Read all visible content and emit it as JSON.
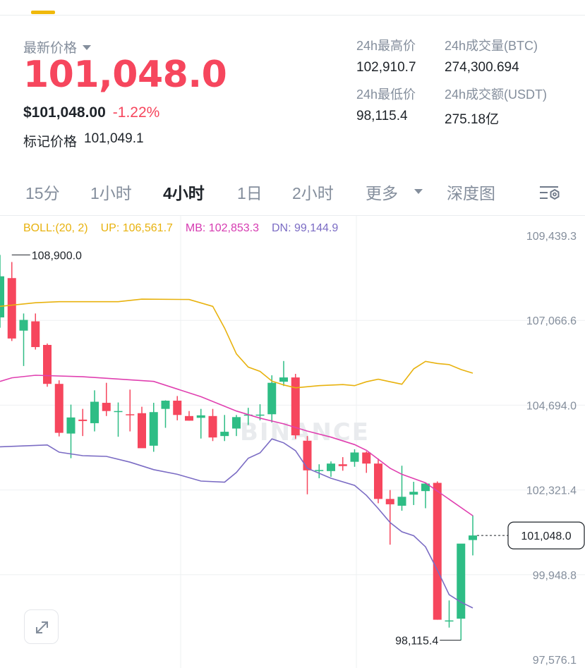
{
  "ticker": {
    "price_label": "最新价格",
    "last_price": "101,048.0",
    "usd_price": "$101,048.00",
    "change_pct": "-1.22%",
    "mark_label": "标记价格",
    "mark_price": "101,049.1"
  },
  "stats": {
    "high_label": "24h最高价",
    "high_value": "102,910.7",
    "low_label": "24h最低价",
    "low_value": "98,115.4",
    "vol_btc_label": "24h成交量(BTC)",
    "vol_btc_value": "274,300.694",
    "vol_usdt_label": "24h成交额(USDT)",
    "vol_usdt_value": "275.18亿"
  },
  "tabs": {
    "t15m": "15分",
    "t1h": "1小时",
    "t4h": "4小时",
    "t1d": "1日",
    "t2h": "2小时",
    "more": "更多",
    "depth": "深度图"
  },
  "indicator": {
    "title": "BOLL:(20, 2)",
    "up": "UP: 106,561.7",
    "mb": "MB: 102,853.3",
    "dn": "DN: 99,144.9"
  },
  "colors": {
    "up": "#2ebd85",
    "down": "#f6465d",
    "boll_up": "#e8b20e",
    "boll_mb": "#e040b0",
    "boll_dn": "#7b6cc4",
    "accent": "#f0b90b"
  },
  "icons": {
    "expand": "expand-icon",
    "settings": "chart-settings-icon",
    "caret": "caret-down-icon"
  },
  "chart_data": {
    "type": "candlestick",
    "watermark": "BINANCE",
    "ylim": [
      97576.1,
      109439.3
    ],
    "y_ticks": [
      {
        "value": 109439.3,
        "label": "109,439.3"
      },
      {
        "value": 107066.6,
        "label": "107,066.6"
      },
      {
        "value": 104694.0,
        "label": "104,694.0"
      },
      {
        "value": 102321.4,
        "label": "102,321.4"
      },
      {
        "value": 99948.8,
        "label": "99,948.8"
      },
      {
        "value": 97576.1,
        "label": "97,576.1"
      }
    ],
    "high_marker": {
      "value": 108900.0,
      "label": "108,900.0"
    },
    "low_marker": {
      "value": 98115.4,
      "label": "98,115.4"
    },
    "current_price": {
      "value": 101048.0,
      "label": "101,048.0"
    },
    "candles": [
      {
        "o": 107150,
        "h": 108900,
        "l": 106860,
        "c": 108300
      },
      {
        "o": 108250,
        "h": 108700,
        "l": 106490,
        "c": 106560
      },
      {
        "o": 106780,
        "h": 107260,
        "l": 105790,
        "c": 107080
      },
      {
        "o": 107040,
        "h": 107260,
        "l": 106250,
        "c": 106320
      },
      {
        "o": 106380,
        "h": 106420,
        "l": 105210,
        "c": 105290
      },
      {
        "o": 105290,
        "h": 105390,
        "l": 103820,
        "c": 103920
      },
      {
        "o": 103900,
        "h": 104710,
        "l": 103210,
        "c": 104350
      },
      {
        "o": 104290,
        "h": 104590,
        "l": 103830,
        "c": 104250
      },
      {
        "o": 104190,
        "h": 105110,
        "l": 103960,
        "c": 104790
      },
      {
        "o": 104760,
        "h": 105320,
        "l": 104390,
        "c": 104530
      },
      {
        "o": 104530,
        "h": 104770,
        "l": 103810,
        "c": 104530
      },
      {
        "o": 104440,
        "h": 105130,
        "l": 103960,
        "c": 104430
      },
      {
        "o": 104470,
        "h": 104650,
        "l": 103510,
        "c": 103490
      },
      {
        "o": 103560,
        "h": 104760,
        "l": 103390,
        "c": 104500
      },
      {
        "o": 104590,
        "h": 104830,
        "l": 104060,
        "c": 104820
      },
      {
        "o": 104820,
        "h": 104950,
        "l": 104270,
        "c": 104420
      },
      {
        "o": 104390,
        "h": 104530,
        "l": 104260,
        "c": 104260
      },
      {
        "o": 104340,
        "h": 104590,
        "l": 103760,
        "c": 104410
      },
      {
        "o": 104390,
        "h": 104590,
        "l": 103690,
        "c": 103790
      },
      {
        "o": 103830,
        "h": 104420,
        "l": 103690,
        "c": 103950
      },
      {
        "o": 104040,
        "h": 104420,
        "l": 103830,
        "c": 104360
      },
      {
        "o": 104410,
        "h": 104620,
        "l": 104140,
        "c": 104430
      },
      {
        "o": 104430,
        "h": 104720,
        "l": 104270,
        "c": 104430
      },
      {
        "o": 104440,
        "h": 105530,
        "l": 104210,
        "c": 105320
      },
      {
        "o": 105350,
        "h": 105930,
        "l": 105230,
        "c": 105470
      },
      {
        "o": 105470,
        "h": 105570,
        "l": 103750,
        "c": 103850
      },
      {
        "o": 103700,
        "h": 103830,
        "l": 102200,
        "c": 102870
      },
      {
        "o": 102870,
        "h": 103040,
        "l": 102650,
        "c": 102880
      },
      {
        "o": 102850,
        "h": 103120,
        "l": 102690,
        "c": 103060
      },
      {
        "o": 103040,
        "h": 103240,
        "l": 102860,
        "c": 102990
      },
      {
        "o": 103110,
        "h": 103460,
        "l": 102970,
        "c": 103370
      },
      {
        "o": 103370,
        "h": 103400,
        "l": 102800,
        "c": 103060
      },
      {
        "o": 103060,
        "h": 103200,
        "l": 101950,
        "c": 102070
      },
      {
        "o": 102070,
        "h": 102320,
        "l": 100790,
        "c": 101920
      },
      {
        "o": 101880,
        "h": 103000,
        "l": 101740,
        "c": 102130
      },
      {
        "o": 102190,
        "h": 102550,
        "l": 101900,
        "c": 102270
      },
      {
        "o": 102290,
        "h": 102520,
        "l": 101810,
        "c": 102500
      },
      {
        "o": 102520,
        "h": 102560,
        "l": 98690,
        "c": 98690
      },
      {
        "o": 98650,
        "h": 99230,
        "l": 98470,
        "c": 98670
      },
      {
        "o": 98720,
        "h": 100800,
        "l": 98115.4,
        "c": 100820
      },
      {
        "o": 100920,
        "h": 101610,
        "l": 100490,
        "c": 101048
      }
    ],
    "boll_up": [
      {
        "i": 0,
        "v": 107460
      },
      {
        "i": 3,
        "v": 107560
      },
      {
        "i": 5,
        "v": 107590
      },
      {
        "i": 10,
        "v": 107590
      },
      {
        "i": 12,
        "v": 107660
      },
      {
        "i": 16,
        "v": 107650
      },
      {
        "i": 18,
        "v": 107460
      },
      {
        "i": 19,
        "v": 106850
      },
      {
        "i": 20,
        "v": 106130
      },
      {
        "i": 21,
        "v": 105760
      },
      {
        "i": 22,
        "v": 105640
      },
      {
        "i": 23,
        "v": 105370
      },
      {
        "i": 24,
        "v": 105260
      },
      {
        "i": 25,
        "v": 105180
      },
      {
        "i": 27,
        "v": 105240
      },
      {
        "i": 29,
        "v": 105270
      },
      {
        "i": 30,
        "v": 105240
      },
      {
        "i": 31,
        "v": 105350
      },
      {
        "i": 32,
        "v": 105420
      },
      {
        "i": 33,
        "v": 105350
      },
      {
        "i": 34,
        "v": 105280
      },
      {
        "i": 35,
        "v": 105710
      },
      {
        "i": 36,
        "v": 105920
      },
      {
        "i": 37,
        "v": 105860
      },
      {
        "i": 38,
        "v": 105830
      },
      {
        "i": 39,
        "v": 105690
      },
      {
        "i": 40,
        "v": 105590
      }
    ],
    "boll_mb": [
      {
        "i": 0,
        "v": 105360
      },
      {
        "i": 1,
        "v": 105460
      },
      {
        "i": 3,
        "v": 105530
      },
      {
        "i": 7,
        "v": 105490
      },
      {
        "i": 13,
        "v": 105360
      },
      {
        "i": 17,
        "v": 104930
      },
      {
        "i": 20,
        "v": 104530
      },
      {
        "i": 22,
        "v": 104330
      },
      {
        "i": 24,
        "v": 104170
      },
      {
        "i": 26,
        "v": 103970
      },
      {
        "i": 28,
        "v": 103800
      },
      {
        "i": 30,
        "v": 103590
      },
      {
        "i": 31,
        "v": 103430
      },
      {
        "i": 33,
        "v": 102930
      },
      {
        "i": 34,
        "v": 102760
      },
      {
        "i": 36,
        "v": 102520
      },
      {
        "i": 38,
        "v": 102060
      },
      {
        "i": 40,
        "v": 101600
      }
    ],
    "boll_dn": [
      {
        "i": 0,
        "v": 103530
      },
      {
        "i": 4,
        "v": 103580
      },
      {
        "i": 5,
        "v": 103380
      },
      {
        "i": 7,
        "v": 103280
      },
      {
        "i": 9,
        "v": 103260
      },
      {
        "i": 11,
        "v": 103100
      },
      {
        "i": 13,
        "v": 102890
      },
      {
        "i": 15,
        "v": 102760
      },
      {
        "i": 17,
        "v": 102570
      },
      {
        "i": 19,
        "v": 102540
      },
      {
        "i": 20,
        "v": 102810
      },
      {
        "i": 21,
        "v": 103210
      },
      {
        "i": 22,
        "v": 103360
      },
      {
        "i": 23,
        "v": 103750
      },
      {
        "i": 24,
        "v": 103640
      },
      {
        "i": 25,
        "v": 103420
      },
      {
        "i": 26,
        "v": 102930
      },
      {
        "i": 28,
        "v": 102650
      },
      {
        "i": 30,
        "v": 102450
      },
      {
        "i": 31,
        "v": 102170
      },
      {
        "i": 32,
        "v": 101800
      },
      {
        "i": 33,
        "v": 101410
      },
      {
        "i": 34,
        "v": 101150
      },
      {
        "i": 35,
        "v": 101040
      },
      {
        "i": 36,
        "v": 100730
      },
      {
        "i": 37,
        "v": 100080
      },
      {
        "i": 38,
        "v": 99390
      },
      {
        "i": 39,
        "v": 99180
      },
      {
        "i": 40,
        "v": 99020
      }
    ]
  }
}
